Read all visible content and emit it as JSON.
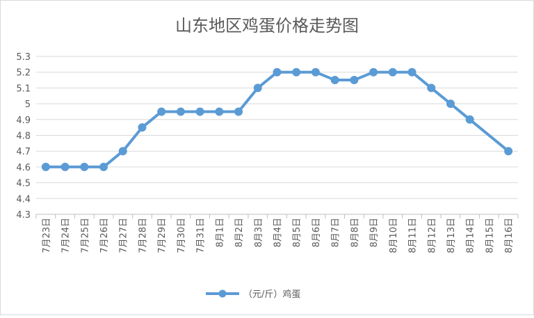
{
  "chart_data": {
    "type": "line",
    "title": "山东地区鸡蛋价格走势图",
    "xlabel": "",
    "ylabel": "",
    "ylim": [
      4.3,
      5.3
    ],
    "y_ticks": [
      "4.3",
      "4.4",
      "4.5",
      "4.6",
      "4.7",
      "4.8",
      "4.9",
      "5",
      "5.1",
      "5.2",
      "5.3"
    ],
    "categories": [
      "7月23日",
      "7月24日",
      "7月25日",
      "7月26日",
      "7月27日",
      "7月28日",
      "7月29日",
      "7月30日",
      "7月31日",
      "8月1日",
      "8月2日",
      "8月3日",
      "8月4日",
      "8月5日",
      "8月6日",
      "8月7日",
      "8月8日",
      "8月9日",
      "8月10日",
      "8月11日",
      "8月12日",
      "8月13日",
      "8月14日",
      "8月15日",
      "8月16日"
    ],
    "series": [
      {
        "name": "（元/斤）鸡蛋",
        "color": "#5b9bd5",
        "values": [
          4.6,
          4.6,
          4.6,
          4.6,
          4.7,
          4.85,
          4.95,
          4.95,
          4.95,
          4.95,
          4.95,
          5.1,
          5.2,
          5.2,
          5.2,
          5.15,
          5.15,
          5.2,
          5.2,
          5.2,
          5.1,
          5.0,
          4.9,
          null,
          4.7
        ]
      }
    ],
    "grid": true,
    "legend_position": "bottom"
  }
}
